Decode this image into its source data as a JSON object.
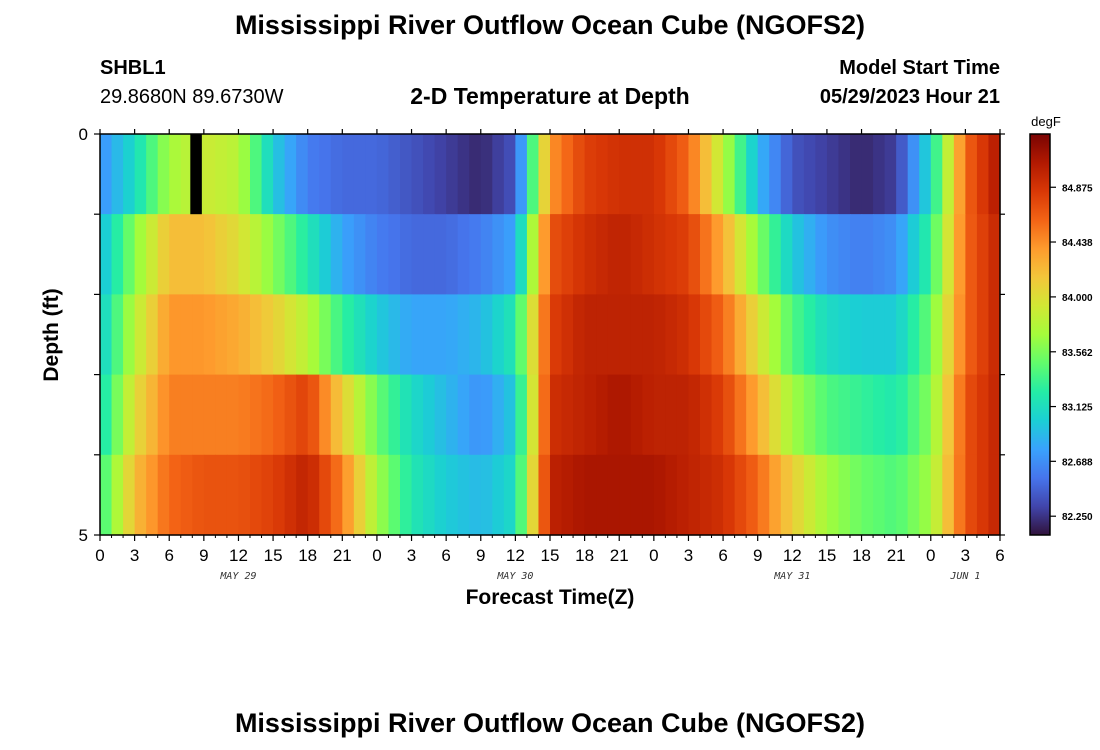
{
  "header": {
    "title": "Mississippi River Outflow Ocean Cube (NGOFS2)",
    "station_id": "SHBL1",
    "station_coords": "29.8680N  89.6730W",
    "subtitle": "2-D Temperature at Depth",
    "model_start_label": "Model Start Time",
    "model_start_value": "05/29/2023 Hour 21"
  },
  "footer": {
    "title": "Mississippi River Outflow Ocean Cube (NGOFS2)"
  },
  "chart_data": {
    "type": "heatmap",
    "xlabel": "Forecast Time(Z)",
    "ylabel": "Depth (ft)",
    "x_unit": "hours from 2023-05-29 00Z",
    "xlim": [
      0,
      78
    ],
    "ylim": [
      0,
      5
    ],
    "x_ticks": [
      "0",
      "3",
      "6",
      "9",
      "12",
      "15",
      "18",
      "21",
      "0",
      "3",
      "6",
      "9",
      "12",
      "15",
      "18",
      "21",
      "0",
      "3",
      "6",
      "9",
      "12",
      "15",
      "18",
      "21",
      "0",
      "3",
      "6"
    ],
    "date_labels": [
      {
        "label": "MAY 29",
        "hour": 12
      },
      {
        "label": "MAY 30",
        "hour": 36
      },
      {
        "label": "MAY 31",
        "hour": 60
      },
      {
        "label": "JUN 1",
        "hour": 75
      }
    ],
    "y_ticks": [
      "0",
      "5"
    ],
    "colorbar": {
      "unit": "degF",
      "min": 82.1,
      "max": 85.3,
      "tick_labels": [
        "84.875",
        "84.438",
        "84.000",
        "83.562",
        "83.125",
        "82.688",
        "82.250"
      ],
      "colors": [
        "#30123b",
        "#4145ab",
        "#4675ed",
        "#39a2fc",
        "#1bcfd4",
        "#24eca6",
        "#61fc6c",
        "#a4fc3b",
        "#d1e834",
        "#f3c63a",
        "#fe9b2d",
        "#f36315",
        "#d93806",
        "#b11901",
        "#7a0403"
      ]
    },
    "depth_layers_ft": [
      0.0,
      0.5,
      1.5,
      2.5,
      3.5,
      4.5
    ],
    "time_keyframes_hr": [
      0,
      3,
      6,
      9,
      12,
      15,
      18,
      21,
      24,
      27,
      30,
      33,
      36,
      39,
      42,
      45,
      48,
      51,
      54,
      57,
      60,
      63,
      66,
      69,
      72,
      75,
      78
    ],
    "temperature_degF": [
      [
        82.7,
        83.1,
        83.7,
        83.9,
        83.8,
        83.0,
        82.6,
        82.5,
        82.5,
        82.4,
        82.3,
        82.2,
        82.4,
        84.4,
        84.8,
        84.9,
        84.9,
        84.6,
        83.8,
        82.9,
        82.4,
        82.3,
        82.2,
        82.3,
        83.1,
        84.6,
        85.1
      ],
      [
        82.9,
        83.4,
        83.9,
        84.0,
        83.8,
        83.3,
        82.9,
        82.6,
        82.5,
        82.4,
        82.3,
        82.3,
        82.4,
        84.6,
        84.9,
        84.9,
        84.9,
        84.7,
        84.0,
        83.2,
        82.6,
        82.4,
        82.4,
        82.5,
        83.2,
        84.6,
        85.0
      ],
      [
        82.9,
        83.6,
        84.2,
        84.2,
        84.0,
        83.6,
        83.2,
        82.8,
        82.6,
        82.5,
        82.5,
        82.6,
        82.8,
        84.7,
        84.9,
        85.0,
        84.9,
        84.8,
        84.3,
        83.6,
        83.0,
        82.7,
        82.6,
        82.7,
        83.3,
        84.6,
        85.0
      ],
      [
        83.0,
        83.8,
        84.4,
        84.4,
        84.3,
        84.1,
        83.8,
        83.3,
        83.0,
        82.8,
        82.8,
        82.9,
        83.2,
        84.8,
        85.0,
        85.0,
        85.0,
        84.9,
        84.6,
        84.0,
        83.4,
        83.1,
        83.0,
        83.0,
        83.5,
        84.6,
        85.0
      ],
      [
        83.1,
        84.0,
        84.5,
        84.5,
        84.5,
        84.6,
        84.8,
        84.1,
        83.5,
        83.1,
        82.9,
        82.7,
        83.0,
        84.9,
        85.0,
        85.1,
        85.0,
        85.0,
        84.8,
        84.3,
        83.7,
        83.4,
        83.3,
        83.2,
        83.6,
        84.7,
        85.0
      ],
      [
        83.3,
        84.2,
        84.6,
        84.7,
        84.7,
        84.8,
        85.0,
        84.5,
        83.7,
        83.2,
        83.0,
        82.9,
        83.1,
        85.0,
        85.1,
        85.1,
        85.1,
        85.0,
        84.9,
        84.6,
        84.1,
        83.7,
        83.5,
        83.4,
        83.7,
        84.7,
        85.0
      ]
    ],
    "missing_cells": [
      {
        "hour": 8,
        "depth_layer": 0
      }
    ],
    "grid": false,
    "legend": "right"
  }
}
